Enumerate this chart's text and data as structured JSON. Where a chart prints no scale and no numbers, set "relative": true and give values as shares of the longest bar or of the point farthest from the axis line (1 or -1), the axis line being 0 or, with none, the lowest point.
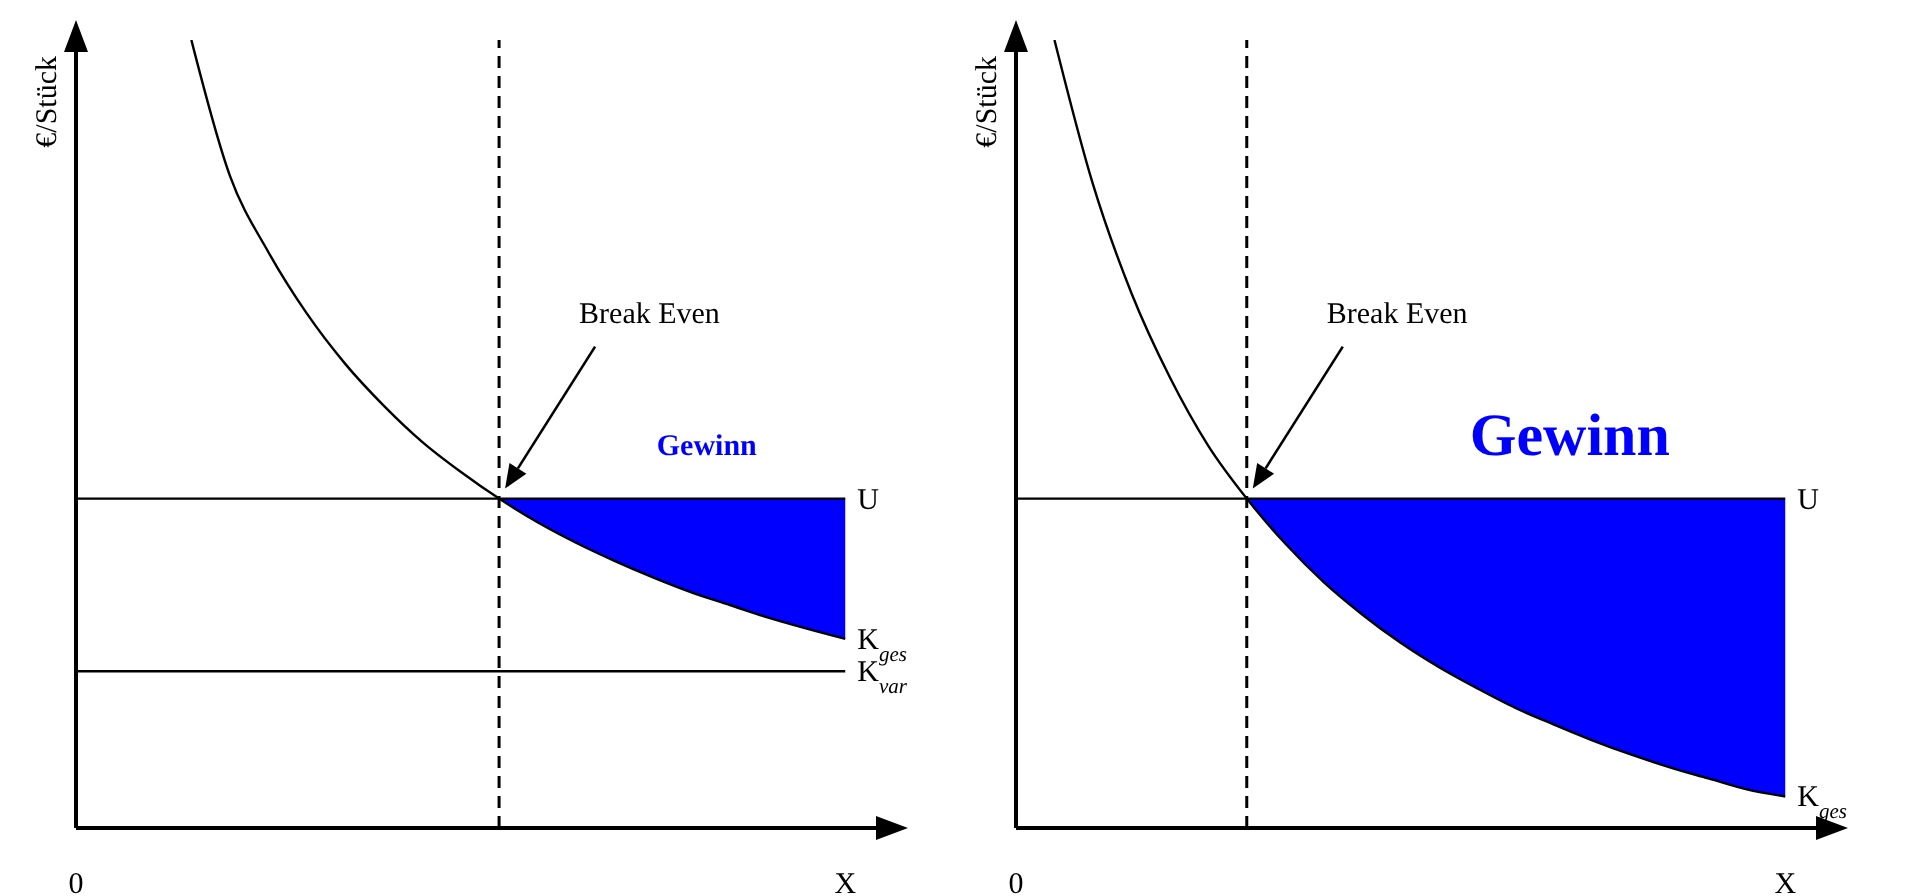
{
  "chart_data": [
    {
      "type": "line",
      "relative": true,
      "ylabel": "€/Stück",
      "categories": [
        "0",
        null,
        null,
        null,
        null,
        null,
        null,
        null,
        null,
        null,
        null,
        null,
        null,
        null,
        null,
        null,
        null,
        null,
        null,
        null,
        "X"
      ],
      "series": [
        {
          "type": "area",
          "color": "#0000ff",
          "values": [
            null,
            null,
            null,
            null,
            null,
            null,
            null,
            null,
            null,
            null,
            null,
            0.418,
            0.418,
            0.418,
            0.418,
            0.418,
            0.418,
            0.418,
            0.418,
            0.418,
            0.418
          ]
        },
        {
          "name": "U",
          "color": "#000000",
          "values": [
            0.418,
            0.418,
            0.418,
            0.418,
            0.418,
            0.418,
            0.418,
            0.418,
            0.418,
            0.418,
            0.418,
            0.418,
            0.418,
            0.418,
            0.418,
            0.418,
            0.418,
            0.418,
            0.418,
            0.418,
            0.418
          ]
        },
        {
          "name": "K$_{ges}$",
          "color": "#000000",
          "values": [
            null,
            null,
            null,
            1,
            0.828,
            0.731,
            0.653,
            0.589,
            0.536,
            0.49,
            0.452,
            0.418,
            0.388,
            0.362,
            0.339,
            0.318,
            0.299,
            0.283,
            0.267,
            0.253,
            0.24
          ]
        },
        {
          "name": "K$_{var}$",
          "color": "#000000",
          "values": [
            0.199,
            0.199,
            0.199,
            0.199,
            0.199,
            0.199,
            0.199,
            0.199,
            0.199,
            0.199,
            0.199,
            0.199,
            0.199,
            0.199,
            0.199,
            0.199,
            0.199,
            0.199,
            0.199,
            0.199,
            0.199
          ]
        }
      ],
      "annotations": [
        "Break Even",
        "Gewinn"
      ]
    },
    {
      "type": "line",
      "relative": true,
      "ylabel": "€/Stück",
      "categories": [
        "0",
        null,
        null,
        null,
        null,
        null,
        null,
        null,
        null,
        null,
        null,
        null,
        null,
        null,
        null,
        null,
        null,
        null,
        null,
        null,
        "X"
      ],
      "series": [
        {
          "type": "area",
          "color": "#0000ff",
          "values": [
            null,
            null,
            null,
            null,
            null,
            null,
            0.418,
            0.418,
            0.418,
            0.418,
            0.418,
            0.418,
            0.418,
            0.418,
            0.418,
            0.418,
            0.418,
            0.418,
            0.418,
            0.418,
            0.418
          ]
        },
        {
          "name": "U",
          "color": "#000000",
          "values": [
            0.418,
            0.418,
            0.418,
            0.418,
            0.418,
            0.418,
            0.418,
            0.418,
            0.418,
            0.418,
            0.418,
            0.418,
            0.418,
            0.418,
            0.418,
            0.418,
            0.418,
            0.418,
            0.418,
            0.418,
            0.418
          ]
        },
        {
          "name": "K$_{ges}$",
          "color": "#000000",
          "values": [
            null,
            1,
            0.817,
            0.679,
            0.572,
            0.485,
            0.418,
            0.361,
            0.312,
            0.271,
            0.235,
            0.204,
            0.177,
            0.152,
            0.131,
            0.111,
            0.093,
            0.077,
            0.063,
            0.049,
            0.04
          ]
        }
      ],
      "annotations": [
        "Break Even",
        "Gewinn"
      ]
    }
  ]
}
